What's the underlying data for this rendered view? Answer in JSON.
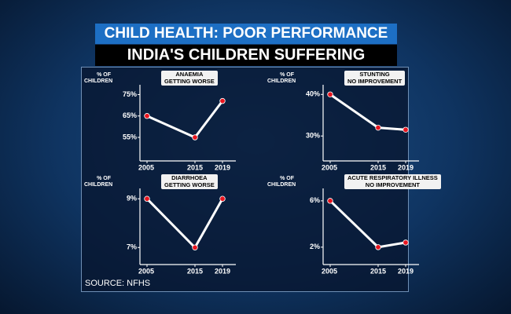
{
  "header": {
    "title": "CHILD HEALTH: POOR PERFORMANCE",
    "subtitle": "INDIA'S CHILDREN SUFFERING"
  },
  "source": "SOURCE: NFHS",
  "chart_data": [
    {
      "type": "line",
      "title": "ANAEMIA",
      "subtitle": "GETTING WORSE",
      "y_label": "% OF CHILDREN",
      "categories": [
        "2005",
        "2015",
        "2019"
      ],
      "values": [
        65,
        55,
        72
      ],
      "color": "#ffffff",
      "marker_color": "#e8141e",
      "ylim": [
        44,
        77
      ],
      "yticks": [
        {
          "value": 55,
          "label": "55%"
        },
        {
          "value": 65,
          "label": "65%"
        },
        {
          "value": 75,
          "label": "75%"
        }
      ]
    },
    {
      "type": "line",
      "title": "STUNTING",
      "subtitle": "NO IMPROVEMENT",
      "y_label": "% OF CHILDREN",
      "categories": [
        "2005",
        "2015",
        "2019"
      ],
      "values": [
        40,
        32,
        31.5
      ],
      "color": "#ffffff",
      "marker_color": "#e8141e",
      "ylim": [
        24,
        41
      ],
      "yticks": [
        {
          "value": 30,
          "label": "30%"
        },
        {
          "value": 40,
          "label": "40%"
        }
      ]
    },
    {
      "type": "line",
      "title": "DIARRHOEA",
      "subtitle": "GETTING WORSE",
      "y_label": "% OF CHILDREN",
      "categories": [
        "2005",
        "2015",
        "2019"
      ],
      "values": [
        9,
        7,
        9
      ],
      "color": "#ffffff",
      "marker_color": "#e8141e",
      "ylim": [
        6.3,
        9.2
      ],
      "yticks": [
        {
          "value": 7,
          "label": "7%"
        },
        {
          "value": 9,
          "label": "9%"
        }
      ]
    },
    {
      "type": "line",
      "title": "ACUTE RESPIRATORY ILLNESS",
      "subtitle": "NO IMPROVEMENT",
      "y_label": "% OF CHILDREN",
      "categories": [
        "2005",
        "2015",
        "2019"
      ],
      "values": [
        6,
        2,
        2.4
      ],
      "color": "#ffffff",
      "marker_color": "#e8141e",
      "ylim": [
        0.5,
        6.6
      ],
      "yticks": [
        {
          "value": 2,
          "label": "2%"
        },
        {
          "value": 6,
          "label": "6%"
        }
      ]
    }
  ]
}
